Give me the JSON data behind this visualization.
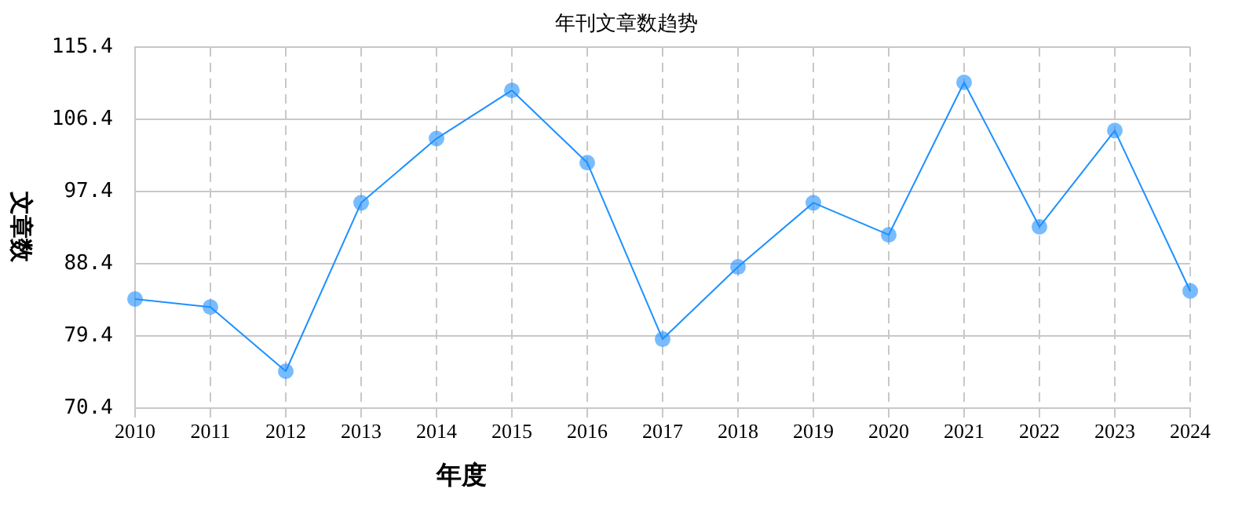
{
  "chart_data": {
    "type": "line",
    "title": "年刊文章数趋势",
    "xlabel": "年度",
    "ylabel": "文章数",
    "categories": [
      "2010",
      "2011",
      "2012",
      "2013",
      "2014",
      "2015",
      "2016",
      "2017",
      "2018",
      "2019",
      "2020",
      "2021",
      "2022",
      "2023",
      "2024"
    ],
    "series": [
      {
        "color": "#1e90ff",
        "values": [
          84,
          83,
          75,
          96,
          104,
          110,
          101,
          79,
          88,
          96,
          92,
          111,
          93,
          105,
          85
        ]
      }
    ],
    "ylim": [
      70.4,
      115.4
    ],
    "yticks": [
      70.4,
      79.4,
      88.4,
      97.4,
      106.4,
      115.4
    ],
    "grid": true,
    "legend": false,
    "marker": "circle",
    "line_style": "solid"
  }
}
